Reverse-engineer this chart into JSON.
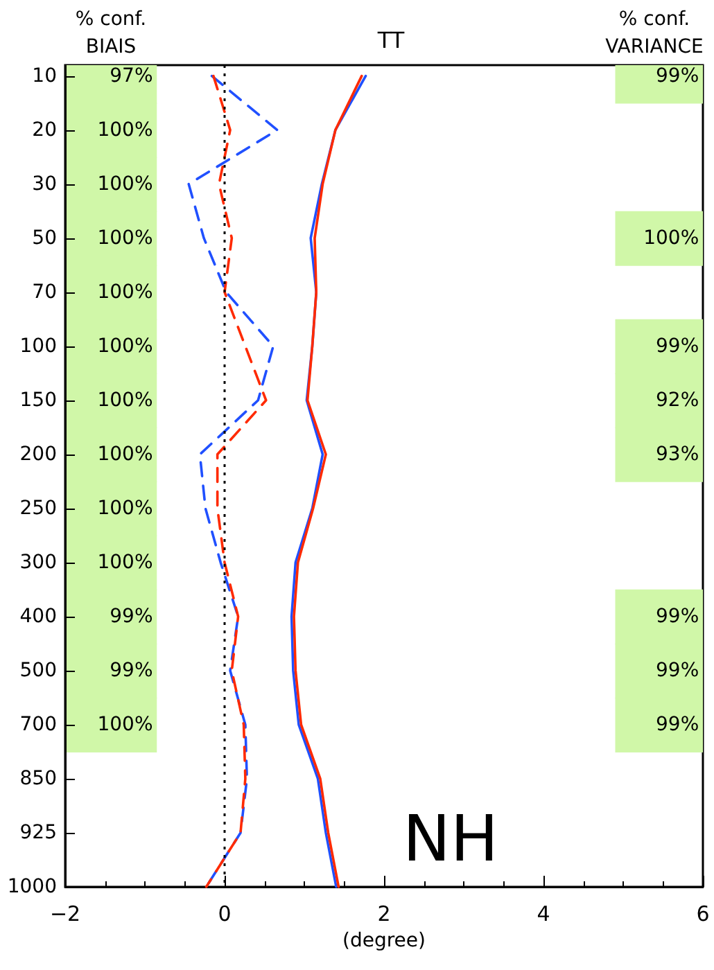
{
  "chart_data": {
    "type": "line",
    "orientation": "horizontal",
    "title": "TT",
    "xlabel": "(degree)",
    "categories": [
      "10",
      "20",
      "30",
      "50",
      "70",
      "100",
      "150",
      "200",
      "250",
      "300",
      "400",
      "500",
      "700",
      "850",
      "925",
      "1000"
    ],
    "xlim": [
      -2,
      6
    ],
    "xticks": [
      -2,
      0,
      2,
      4,
      6
    ],
    "marker": "none",
    "series": [
      {
        "color": "#2050ff",
        "line_style": "dashed",
        "values": [
          -0.16,
          0.66,
          -0.45,
          -0.26,
          0.02,
          0.61,
          0.42,
          -0.31,
          -0.24,
          -0.05,
          0.17,
          0.07,
          0.26,
          0.28,
          0.2,
          -0.23
        ]
      },
      {
        "color": "#ff2a00",
        "line_style": "dashed",
        "values": [
          -0.14,
          0.07,
          -0.07,
          0.09,
          0.0,
          0.26,
          0.52,
          -0.09,
          -0.09,
          0.0,
          0.17,
          0.09,
          0.24,
          0.26,
          0.2,
          -0.23
        ]
      },
      {
        "color": "#2050ff",
        "line_style": "solid",
        "values": [
          1.77,
          1.39,
          1.22,
          1.08,
          1.15,
          1.1,
          1.03,
          1.23,
          1.1,
          0.89,
          0.84,
          0.86,
          0.93,
          1.17,
          1.27,
          1.4
        ]
      },
      {
        "color": "#ff2a00",
        "line_style": "solid",
        "values": [
          1.72,
          1.39,
          1.23,
          1.13,
          1.15,
          1.1,
          1.04,
          1.27,
          1.11,
          0.92,
          0.87,
          0.89,
          0.96,
          1.2,
          1.3,
          1.43
        ]
      }
    ],
    "ref_lines": [
      {
        "axis": "x",
        "value": 0,
        "color": "#000000",
        "line_style": "dotted"
      }
    ],
    "annotations": [
      "% conf.\nBIAIS",
      "% conf.\nVARIANCE",
      "NH",
      "97%",
      "100%",
      "100%",
      "100%",
      "100%",
      "100%",
      "100%",
      "100%",
      "100%",
      "100%",
      "99%",
      "99%",
      "100%",
      "99%",
      "100%",
      "99%",
      "92%",
      "93%",
      "99%",
      "99%",
      "99%"
    ]
  }
}
